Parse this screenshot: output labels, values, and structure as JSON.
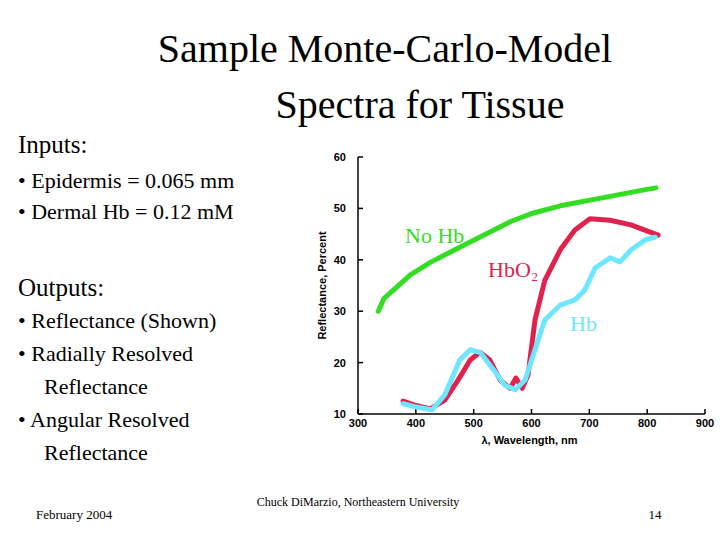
{
  "slide": {
    "title": [
      "Sample Monte-Carlo-Model",
      "Spectra for Tissue"
    ],
    "inputs_heading": "Inputs:",
    "inputs": [
      "• Epidermis = 0.065 mm",
      "• Dermal Hb = 0.12 mM"
    ],
    "outputs_heading": "Outputs:",
    "outputs": [
      [
        "• Reflectance (Shown)"
      ],
      [
        "• Radially Resolved",
        "Reflectance"
      ],
      [
        "• Angular Resolved",
        "Reflectance"
      ]
    ],
    "footer_date": "February 2004",
    "footer_author": "Chuck DiMarzio, Northeastern University",
    "page_number": "14"
  },
  "chart_data": {
    "type": "line",
    "x_label": "λ, Wavelength, nm",
    "y_label": "Reflectance, Percent",
    "xlim": [
      300,
      900
    ],
    "xticks": [
      300,
      400,
      500,
      600,
      700,
      800,
      900
    ],
    "ylim": [
      10,
      60
    ],
    "yticks": [
      10,
      20,
      30,
      40,
      50,
      60
    ],
    "grid": false,
    "series": [
      {
        "name": "No Hb",
        "color": "#33dd22",
        "x": [
          335,
          345,
          365,
          390,
          425,
          460,
          495,
          530,
          565,
          600,
          650,
          720,
          790,
          815
        ],
        "values": [
          30,
          32.5,
          34.5,
          37,
          39.5,
          41.5,
          43.5,
          45.5,
          47.5,
          49,
          50.5,
          52,
          53.5,
          54
        ]
      },
      {
        "name": "HbO₂",
        "color": "#e0224e",
        "x": [
          378,
          399,
          425,
          450,
          473,
          494,
          511,
          528,
          546,
          563,
          573,
          584,
          594,
          606,
          623,
          650,
          675,
          701,
          736,
          772,
          805,
          819
        ],
        "values": [
          12.5,
          11.7,
          11,
          12.7,
          16.6,
          20.5,
          22,
          20.5,
          16.6,
          15,
          17,
          15,
          17.6,
          28.3,
          36,
          42,
          45.8,
          48,
          47.7,
          46.8,
          45.4,
          44.8
        ]
      },
      {
        "name": "Hb",
        "color": "#6ee6ff",
        "x": [
          378,
          399,
          428,
          450,
          476,
          494,
          511,
          537,
          554,
          572,
          589,
          606,
          623,
          650,
          675,
          692,
          710,
          736,
          753,
          772,
          797,
          814
        ],
        "values": [
          12,
          11.4,
          10.8,
          13.7,
          20.5,
          22.5,
          22,
          18.2,
          15.6,
          14.7,
          16.6,
          22.5,
          28.3,
          31.2,
          32.2,
          34.1,
          38.4,
          40.4,
          39.6,
          41.9,
          43.9,
          44.4
        ]
      }
    ]
  }
}
